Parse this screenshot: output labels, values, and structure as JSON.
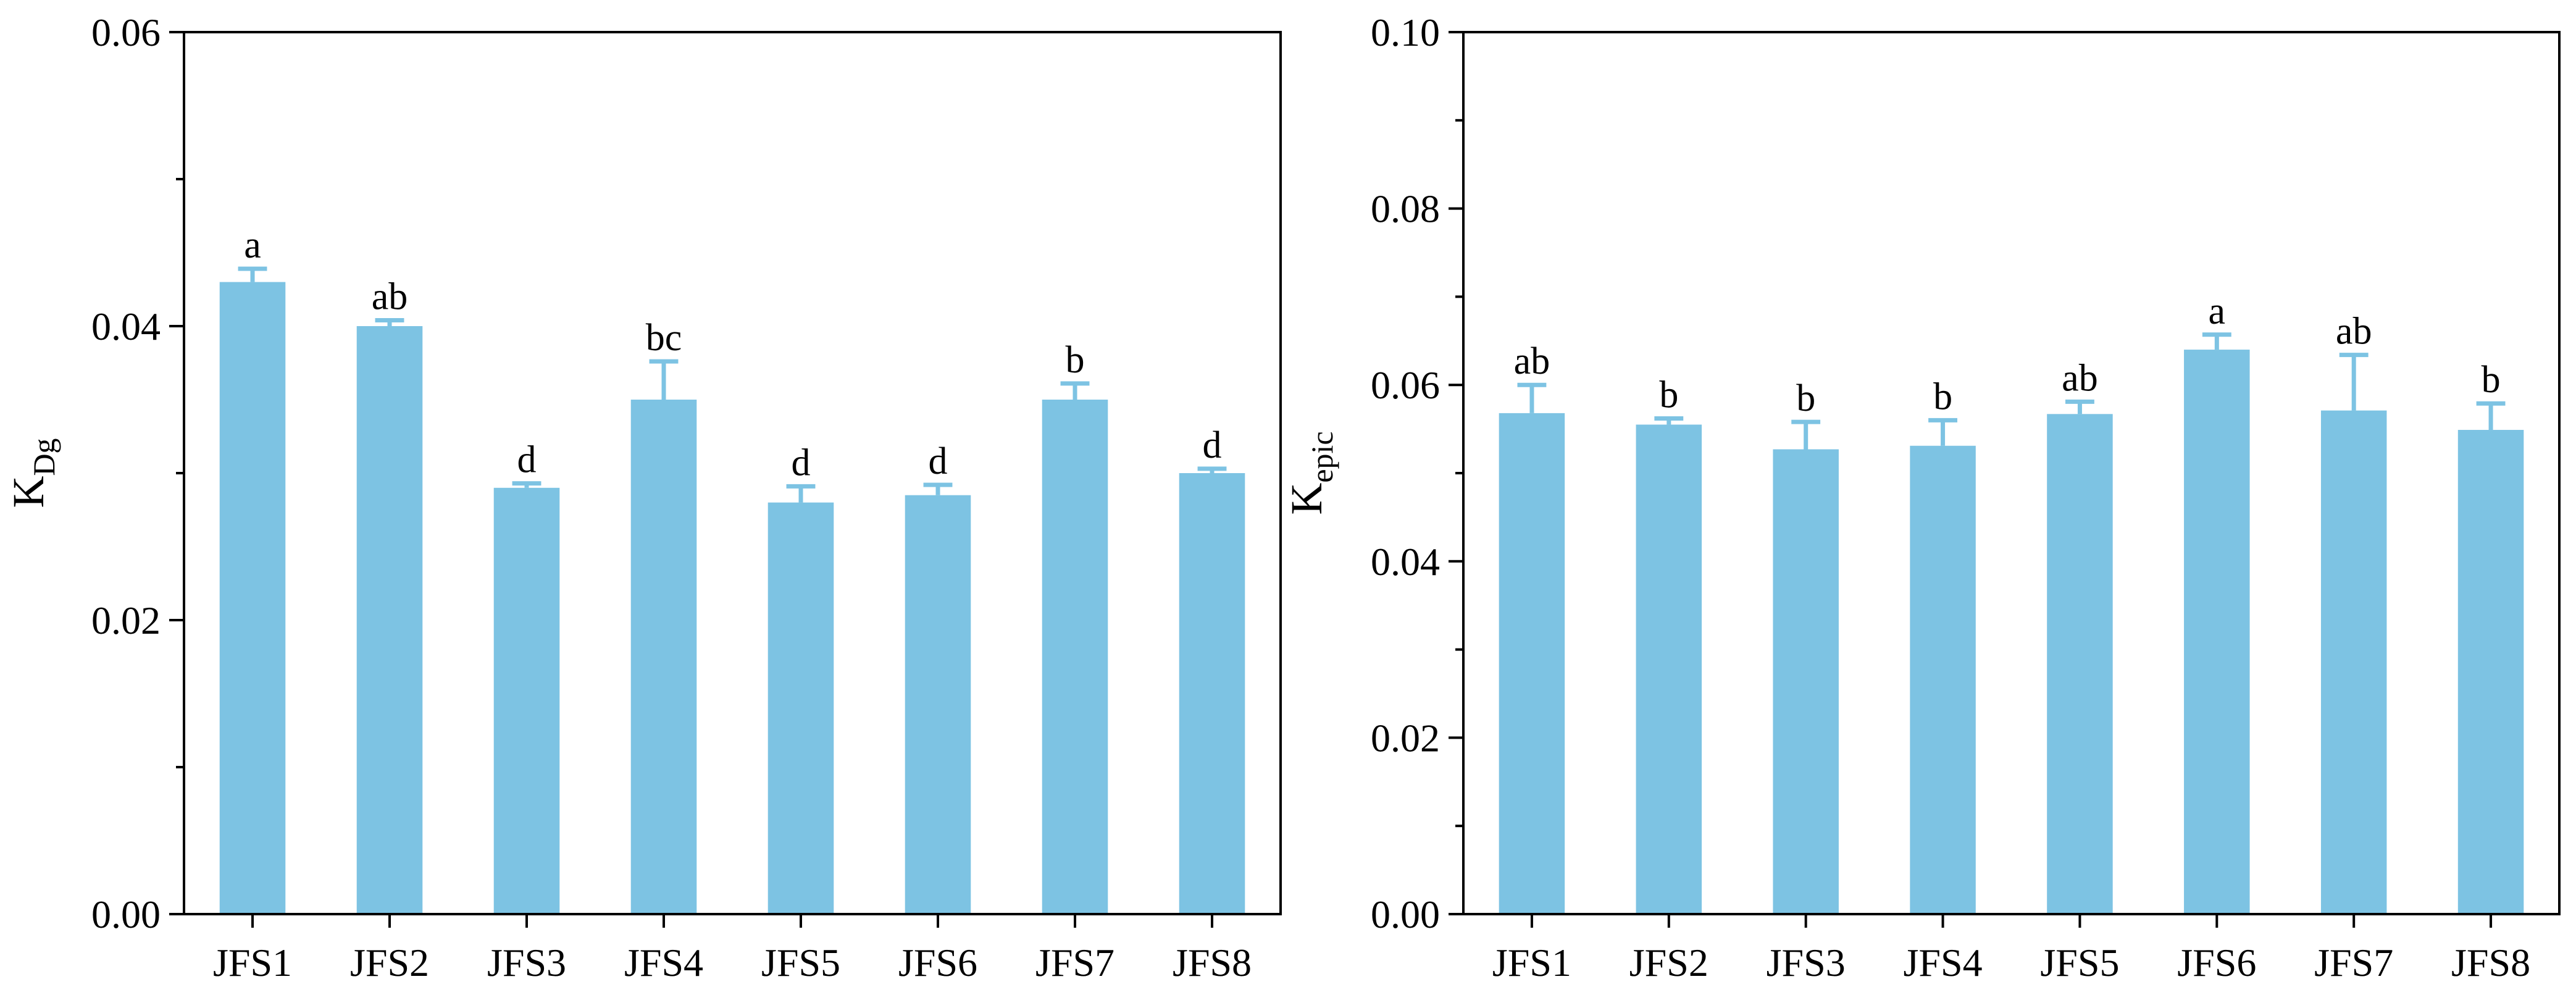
{
  "chart_data": [
    {
      "type": "bar",
      "title": "",
      "xlabel": "",
      "ylabel": "K",
      "ylabel_sub": "Dg",
      "categories": [
        "JFS1",
        "JFS2",
        "JFS3",
        "JFS4",
        "JFS5",
        "JFS6",
        "JFS7",
        "JFS8"
      ],
      "values": [
        0.043,
        0.04,
        0.029,
        0.035,
        0.028,
        0.0285,
        0.035,
        0.03
      ],
      "errors": [
        0.0009,
        0.0004,
        0.0003,
        0.0026,
        0.0011,
        0.0007,
        0.0011,
        0.0003
      ],
      "significance": [
        "a",
        "ab",
        "d",
        "bc",
        "d",
        "d",
        "b",
        "d"
      ],
      "ylim": [
        0,
        0.06
      ],
      "yticks": [
        "0.00",
        "0.02",
        "0.04",
        "0.06"
      ],
      "ytick_values": [
        0,
        0.02,
        0.04,
        0.06
      ],
      "bar_color": "#7dc3e3",
      "error_color": "#7dc3e3"
    },
    {
      "type": "bar",
      "title": "",
      "xlabel": "",
      "ylabel": "K",
      "ylabel_sub": "epic",
      "categories": [
        "JFS1",
        "JFS2",
        "JFS3",
        "JFS4",
        "JFS5",
        "JFS6",
        "JFS7",
        "JFS8"
      ],
      "values": [
        0.0568,
        0.0555,
        0.0527,
        0.0531,
        0.0567,
        0.064,
        0.0571,
        0.0549
      ],
      "errors": [
        0.0032,
        0.0007,
        0.0031,
        0.0029,
        0.0014,
        0.0017,
        0.0063,
        0.003
      ],
      "significance": [
        "ab",
        "b",
        "b",
        "b",
        "ab",
        "a",
        "ab",
        "b"
      ],
      "ylim": [
        0,
        0.1
      ],
      "yticks": [
        "0.00",
        "0.02",
        "0.04",
        "0.06",
        "0.08",
        "0.10"
      ],
      "ytick_values": [
        0,
        0.02,
        0.04,
        0.06,
        0.08,
        0.1
      ],
      "bar_color": "#7dc3e3",
      "error_color": "#7dc3e3"
    }
  ]
}
